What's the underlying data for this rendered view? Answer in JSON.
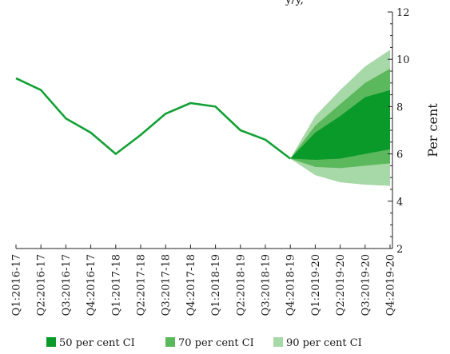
{
  "chart_data": {
    "type": "line",
    "title_fragment": "y/y,",
    "ylabel": "Per cent",
    "ylim": [
      2,
      12
    ],
    "y_ticks": [
      "2",
      "4",
      "6",
      "8",
      "10",
      "12"
    ],
    "categories": [
      "Q1:2016-17",
      "Q2:2016-17",
      "Q3:2016-17",
      "Q4:2016-17",
      "Q1:2017-18",
      "Q2:2017-18",
      "Q3:2017-18",
      "Q4:2017-18",
      "Q1:2018-19",
      "Q2:2018-19",
      "Q3:2018-19",
      "Q4:2018-19",
      "Q1:2019-20",
      "Q2:2019-20",
      "Q3:2019-20",
      "Q4:2019-20"
    ],
    "actual": [
      9.2,
      8.7,
      7.5,
      6.9,
      6.0,
      6.8,
      7.7,
      8.15,
      8.0,
      7.0,
      6.6,
      5.8
    ],
    "fan_start_index": 11,
    "fan_start_value": 5.8,
    "bands": [
      {
        "name": "90 per cent CI",
        "color": "#a7d8a7",
        "lower": [
          5.1,
          4.8,
          4.7,
          4.65
        ],
        "upper": [
          7.6,
          8.7,
          9.7,
          10.4
        ]
      },
      {
        "name": "70 per cent CI",
        "color": "#5cb85c",
        "lower": [
          5.45,
          5.4,
          5.5,
          5.6
        ],
        "upper": [
          7.2,
          8.1,
          9.0,
          9.6
        ]
      },
      {
        "name": "50 per cent CI",
        "color": "#0a9a2a",
        "lower": [
          5.75,
          5.8,
          6.0,
          6.2
        ],
        "upper": [
          6.9,
          7.6,
          8.4,
          8.7
        ]
      }
    ],
    "line_color": "#12a035",
    "grid": false,
    "legend_position": "bottom",
    "legend": [
      {
        "label": "50 per cent CI",
        "color": "#0a9a2a"
      },
      {
        "label": "70 per cent CI",
        "color": "#5cb85c"
      },
      {
        "label": "90 per cent CI",
        "color": "#a7d8a7"
      }
    ]
  }
}
